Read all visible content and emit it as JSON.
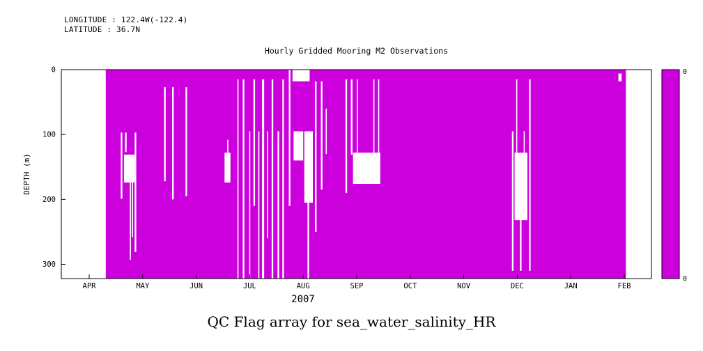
{
  "header": {
    "longitude_label": "LONGITUDE : 122.4W(-122.4)",
    "latitude_label": "LATITUDE : 36.7N"
  },
  "chart_data": {
    "type": "heatmap",
    "title": "Hourly Gridded Mooring M2 Observations",
    "caption": "QC Flag array for sea_water_salinity_HR",
    "xlabel_year": "2007",
    "ylabel": "DEPTH (m)",
    "x_tick_labels": [
      "APR",
      "MAY",
      "JUN",
      "JUL",
      "AUG",
      "SEP",
      "OCT",
      "NOV",
      "DEC",
      "JAN",
      "FEB"
    ],
    "y_ticks": [
      0,
      100,
      200,
      300
    ],
    "depth_range_m": [
      0,
      322
    ],
    "x_axis_note": "time in months, APR=0 .. FEB=10",
    "flag_value": 0,
    "flag_color": "#CC00DC",
    "background_color": "#FFFFFF",
    "axis_color": "#000000",
    "colorbar": {
      "top_label": "0",
      "bottom_label": "0",
      "color": "#CC00DC"
    },
    "coverage": {
      "t_start": 0.31,
      "t_end": 10.03,
      "d0": 0,
      "d1": 322
    },
    "gaps": [
      [
        0.59,
        0.62,
        97,
        199
      ],
      [
        0.65,
        0.85,
        131,
        174
      ],
      [
        0.67,
        0.7,
        97,
        127
      ],
      [
        0.76,
        0.78,
        174,
        293
      ],
      [
        0.8,
        0.82,
        174,
        258
      ],
      [
        0.85,
        0.88,
        97,
        281
      ],
      [
        1.4,
        1.43,
        27,
        172
      ],
      [
        1.55,
        1.58,
        27,
        200
      ],
      [
        1.8,
        1.83,
        27,
        195
      ],
      [
        2.53,
        2.64,
        128,
        174
      ],
      [
        2.58,
        2.6,
        108,
        128
      ],
      [
        2.77,
        2.79,
        15,
        322
      ],
      [
        2.87,
        2.9,
        15,
        322
      ],
      [
        2.99,
        3.01,
        95,
        322
      ],
      [
        3.07,
        3.1,
        15,
        210
      ],
      [
        3.16,
        3.18,
        95,
        322
      ],
      [
        3.23,
        3.27,
        15,
        322
      ],
      [
        3.32,
        3.34,
        95,
        260
      ],
      [
        3.41,
        3.44,
        15,
        322
      ],
      [
        3.52,
        3.55,
        95,
        322
      ],
      [
        3.61,
        3.64,
        15,
        322
      ],
      [
        3.73,
        3.76,
        0,
        210
      ],
      [
        3.8,
        4.12,
        0,
        18
      ],
      [
        3.82,
        4.0,
        95,
        140
      ],
      [
        4.02,
        4.18,
        95,
        205
      ],
      [
        4.08,
        4.11,
        205,
        322
      ],
      [
        4.22,
        4.25,
        18,
        250
      ],
      [
        4.33,
        4.36,
        18,
        185
      ],
      [
        4.42,
        4.44,
        60,
        130
      ],
      [
        4.79,
        4.82,
        15,
        190
      ],
      [
        4.89,
        4.92,
        15,
        131
      ],
      [
        4.93,
        5.44,
        128,
        176
      ],
      [
        5.0,
        5.02,
        15,
        128
      ],
      [
        5.31,
        5.33,
        15,
        128
      ],
      [
        5.4,
        5.42,
        15,
        128
      ],
      [
        7.9,
        7.93,
        95,
        310
      ],
      [
        7.95,
        8.19,
        128,
        232
      ],
      [
        7.98,
        8.0,
        15,
        128
      ],
      [
        8.05,
        8.08,
        232,
        310
      ],
      [
        8.12,
        8.14,
        95,
        128
      ],
      [
        8.22,
        8.25,
        15,
        310
      ],
      [
        9.89,
        9.95,
        6,
        18
      ]
    ]
  }
}
